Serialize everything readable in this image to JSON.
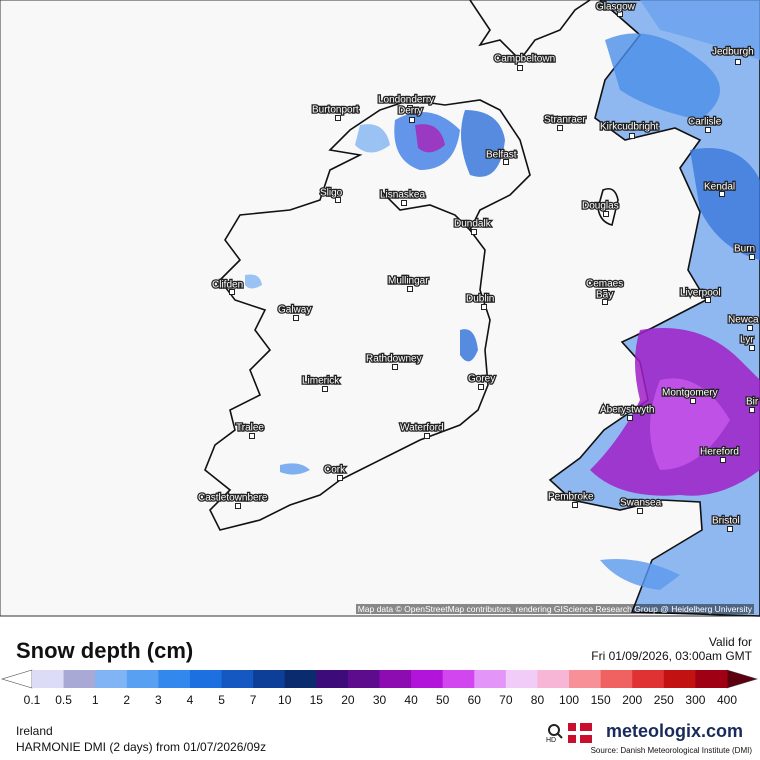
{
  "map": {
    "attribution": "Map data © OpenStreetMap contributors, rendering GIScience Research Group @ Heidelberg University",
    "cities": [
      {
        "name": "Glasgow"
      },
      {
        "name": "Campbeltown"
      },
      {
        "name": "Jedburgh"
      },
      {
        "name": "Burtonport"
      },
      {
        "name": "Londonderry"
      },
      {
        "name": "Derry"
      },
      {
        "name": "Stranraer"
      },
      {
        "name": "Kirkcudbright"
      },
      {
        "name": "Carlisle"
      },
      {
        "name": "Belfast"
      },
      {
        "name": "Sligo"
      },
      {
        "name": "Lisnaskea"
      },
      {
        "name": "Kendal"
      },
      {
        "name": "Douglas"
      },
      {
        "name": "Dundalk"
      },
      {
        "name": "Burn"
      },
      {
        "name": "Clifden"
      },
      {
        "name": "Mullingar"
      },
      {
        "name": "Cemaes"
      },
      {
        "name": "Bay"
      },
      {
        "name": "Liverpool"
      },
      {
        "name": "Dublin"
      },
      {
        "name": "Galway"
      },
      {
        "name": "Newca"
      },
      {
        "name": "Lyr"
      },
      {
        "name": "Rathdowney"
      },
      {
        "name": "Limerick"
      },
      {
        "name": "Gorey"
      },
      {
        "name": "Montgomery"
      },
      {
        "name": "Bir"
      },
      {
        "name": "Aberystwyth"
      },
      {
        "name": "Tralee"
      },
      {
        "name": "Waterford"
      },
      {
        "name": "Hereford"
      },
      {
        "name": "Cork"
      },
      {
        "name": "Pembroke"
      },
      {
        "name": "Castletownbere"
      },
      {
        "name": "Swansea"
      },
      {
        "name": "Bristol"
      }
    ]
  },
  "legend": {
    "title": "Snow depth (cm)",
    "labels": [
      "0.1",
      "0.5",
      "1",
      "2",
      "3",
      "4",
      "5",
      "7",
      "10",
      "15",
      "20",
      "30",
      "40",
      "50",
      "60",
      "70",
      "80",
      "100",
      "150",
      "200",
      "250",
      "300",
      "400"
    ],
    "colors": [
      "#dcdcf6",
      "#a9a9d6",
      "#80b4f5",
      "#58a0f2",
      "#3388ee",
      "#1c70e0",
      "#1558c2",
      "#0e3f98",
      "#0a2c6e",
      "#3e0c7a",
      "#5c0c8c",
      "#8c0cb2",
      "#b214da",
      "#d246f0",
      "#e496f8",
      "#f2ccf8",
      "#f8b6d6",
      "#f89098",
      "#f06262",
      "#e03232",
      "#c21212",
      "#a00014"
    ],
    "under_color": "#ffffff",
    "over_color": "#5c0010"
  },
  "valid": {
    "label": "Valid for",
    "time": "Fri 01/09/2026, 03:00am GMT"
  },
  "footer": {
    "region": "Ireland",
    "model": "HARMONIE DMI (2 days) from 01/07/2026/09z",
    "hd": "HD",
    "brand": "meteologix.com",
    "source": "Source: Danish Meteorological Institute (DMI)"
  }
}
